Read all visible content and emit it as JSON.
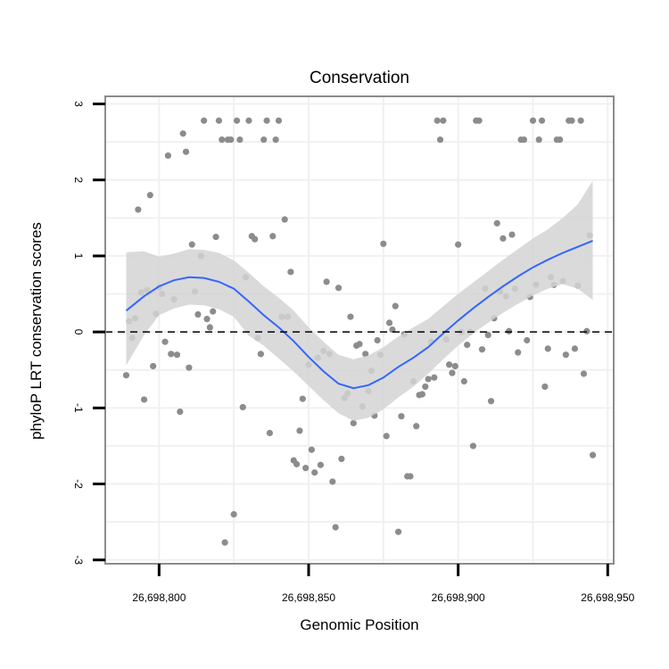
{
  "chart_data": {
    "type": "scatter",
    "title": "Conservation",
    "xlabel": "Genomic Position",
    "ylabel": "phyloP LRT conservation scores",
    "xlim": [
      26698782,
      26698952
    ],
    "ylim": [
      -3.05,
      3.1
    ],
    "xticks": [
      26698800,
      26698850,
      26698900,
      26698950
    ],
    "xtick_labels": [
      "26,698,800",
      "26,698,850",
      "26,698,900",
      "26,698,950"
    ],
    "yticks": [
      -3,
      -2,
      -1,
      0,
      1,
      2,
      3
    ],
    "ytick_labels": [
      "-3",
      "-2",
      "-1",
      "0",
      "1",
      "2",
      "3"
    ],
    "grid": true,
    "reference_line": {
      "y": 0,
      "style": "dashed"
    },
    "colors": {
      "points": "#8c8c8c",
      "smooth_line": "#3366ff",
      "ribbon": "#d3d3d3",
      "grid": "#f0f0f0",
      "frame": "#8c8c8c"
    },
    "series": [
      {
        "type": "scatter",
        "points": [
          [
            26698789,
            -0.57
          ],
          [
            26698790,
            0.14
          ],
          [
            26698791,
            -0.08
          ],
          [
            26698792,
            0.18
          ],
          [
            26698793,
            1.61
          ],
          [
            26698794,
            0.52
          ],
          [
            26698795,
            -0.89
          ],
          [
            26698796,
            0.55
          ],
          [
            26698797,
            1.8
          ],
          [
            26698798,
            -0.45
          ],
          [
            26698799,
            0.24
          ],
          [
            26698800,
            0.59
          ],
          [
            26698801,
            0.5
          ],
          [
            26698802,
            -0.13
          ],
          [
            26698803,
            2.32
          ],
          [
            26698804,
            -0.29
          ],
          [
            26698805,
            0.43
          ],
          [
            26698806,
            -0.3
          ],
          [
            26698807,
            -1.05
          ],
          [
            26698808,
            2.61
          ],
          [
            26698809,
            2.37
          ],
          [
            26698810,
            -0.47
          ],
          [
            26698811,
            1.15
          ],
          [
            26698812,
            0.53
          ],
          [
            26698813,
            0.23
          ],
          [
            26698814,
            1.0
          ],
          [
            26698815,
            2.78
          ],
          [
            26698816,
            0.17
          ],
          [
            26698817,
            0.06
          ],
          [
            26698818,
            0.27
          ],
          [
            26698819,
            1.25
          ],
          [
            26698820,
            2.78
          ],
          [
            26698821,
            2.53
          ],
          [
            26698822,
            -2.77
          ],
          [
            26698823,
            2.53
          ],
          [
            26698824,
            2.53
          ],
          [
            26698825,
            -2.4
          ],
          [
            26698826,
            2.78
          ],
          [
            26698827,
            2.53
          ],
          [
            26698828,
            -0.99
          ],
          [
            26698829,
            0.72
          ],
          [
            26698830,
            2.78
          ],
          [
            26698831,
            1.26
          ],
          [
            26698832,
            1.22
          ],
          [
            26698833,
            -0.08
          ],
          [
            26698834,
            -0.29
          ],
          [
            26698835,
            2.53
          ],
          [
            26698836,
            2.78
          ],
          [
            26698837,
            -1.33
          ],
          [
            26698838,
            1.26
          ],
          [
            26698839,
            2.53
          ],
          [
            26698840,
            2.78
          ],
          [
            26698841,
            0.2
          ],
          [
            26698842,
            1.48
          ],
          [
            26698843,
            0.2
          ],
          [
            26698844,
            0.79
          ],
          [
            26698845,
            -1.69
          ],
          [
            26698846,
            -1.74
          ],
          [
            26698847,
            -1.3
          ],
          [
            26698848,
            -0.88
          ],
          [
            26698849,
            -1.79
          ],
          [
            26698850,
            -0.43
          ],
          [
            26698851,
            -1.55
          ],
          [
            26698852,
            -1.85
          ],
          [
            26698853,
            -0.34
          ],
          [
            26698854,
            -1.75
          ],
          [
            26698855,
            -0.25
          ],
          [
            26698856,
            0.66
          ],
          [
            26698857,
            -0.29
          ],
          [
            26698858,
            -1.97
          ],
          [
            26698859,
            -2.57
          ],
          [
            26698860,
            0.58
          ],
          [
            26698861,
            -1.67
          ],
          [
            26698862,
            -0.87
          ],
          [
            26698863,
            -0.81
          ],
          [
            26698864,
            0.2
          ],
          [
            26698865,
            -1.2
          ],
          [
            26698866,
            -0.18
          ],
          [
            26698867,
            -0.16
          ],
          [
            26698868,
            -0.98
          ],
          [
            26698869,
            -0.29
          ],
          [
            26698870,
            -0.78
          ],
          [
            26698871,
            -0.51
          ],
          [
            26698872,
            -1.1
          ],
          [
            26698873,
            -0.11
          ],
          [
            26698874,
            -0.3
          ],
          [
            26698875,
            1.16
          ],
          [
            26698876,
            -1.37
          ],
          [
            26698877,
            0.12
          ],
          [
            26698878,
            0.03
          ],
          [
            26698879,
            0.34
          ],
          [
            26698880,
            -2.63
          ],
          [
            26698881,
            -1.11
          ],
          [
            26698882,
            -0.03
          ],
          [
            26698883,
            -1.9
          ],
          [
            26698884,
            -1.9
          ],
          [
            26698885,
            -0.65
          ],
          [
            26698886,
            -1.24
          ],
          [
            26698887,
            -0.83
          ],
          [
            26698888,
            -0.82
          ],
          [
            26698889,
            -0.72
          ],
          [
            26698890,
            -0.62
          ],
          [
            26698891,
            -0.13
          ],
          [
            26698892,
            -0.6
          ],
          [
            26698893,
            2.78
          ],
          [
            26698894,
            2.53
          ],
          [
            26698895,
            2.78
          ],
          [
            26698896,
            -0.1
          ],
          [
            26698897,
            -0.43
          ],
          [
            26698898,
            -0.54
          ],
          [
            26698899,
            -0.45
          ],
          [
            26698900,
            1.15
          ],
          [
            26698901,
            0.0
          ],
          [
            26698902,
            -0.65
          ],
          [
            26698903,
            -0.17
          ],
          [
            26698904,
            0.0
          ],
          [
            26698905,
            -1.5
          ],
          [
            26698906,
            2.78
          ],
          [
            26698907,
            2.78
          ],
          [
            26698908,
            -0.23
          ],
          [
            26698909,
            0.57
          ],
          [
            26698910,
            -0.04
          ],
          [
            26698911,
            -0.91
          ],
          [
            26698912,
            0.18
          ],
          [
            26698913,
            1.43
          ],
          [
            26698914,
            0.53
          ],
          [
            26698915,
            1.23
          ],
          [
            26698916,
            0.47
          ],
          [
            26698917,
            0.01
          ],
          [
            26698918,
            1.28
          ],
          [
            26698919,
            0.57
          ],
          [
            26698920,
            -0.27
          ],
          [
            26698921,
            2.53
          ],
          [
            26698922,
            2.53
          ],
          [
            26698923,
            -0.11
          ],
          [
            26698924,
            0.46
          ],
          [
            26698925,
            2.78
          ],
          [
            26698926,
            0.62
          ],
          [
            26698927,
            2.53
          ],
          [
            26698928,
            2.78
          ],
          [
            26698929,
            -0.72
          ],
          [
            26698930,
            -0.22
          ],
          [
            26698931,
            0.72
          ],
          [
            26698932,
            0.62
          ],
          [
            26698933,
            2.53
          ],
          [
            26698934,
            2.53
          ],
          [
            26698935,
            0.67
          ],
          [
            26698936,
            -0.3
          ],
          [
            26698937,
            2.78
          ],
          [
            26698938,
            2.78
          ],
          [
            26698939,
            -0.22
          ],
          [
            26698940,
            0.61
          ],
          [
            26698941,
            2.78
          ],
          [
            26698942,
            -0.55
          ],
          [
            26698943,
            0.01
          ],
          [
            26698944,
            1.27
          ],
          [
            26698945,
            -1.62
          ]
        ]
      },
      {
        "type": "line",
        "smooth": true,
        "x": [
          26698789,
          26698795,
          26698800,
          26698805,
          26698810,
          26698815,
          26698820,
          26698825,
          26698830,
          26698835,
          26698840,
          26698845,
          26698850,
          26698855,
          26698860,
          26698865,
          26698870,
          26698875,
          26698880,
          26698885,
          26698890,
          26698895,
          26698900,
          26698905,
          26698910,
          26698915,
          26698920,
          26698925,
          26698930,
          26698935,
          26698940,
          26698945
        ],
        "y": [
          0.28,
          0.47,
          0.6,
          0.68,
          0.72,
          0.71,
          0.66,
          0.57,
          0.4,
          0.22,
          0.06,
          -0.12,
          -0.33,
          -0.52,
          -0.68,
          -0.74,
          -0.7,
          -0.6,
          -0.46,
          -0.34,
          -0.2,
          -0.02,
          0.15,
          0.31,
          0.46,
          0.6,
          0.73,
          0.85,
          0.95,
          1.04,
          1.12,
          1.2
        ],
        "ci_lower": [
          -0.44,
          -0.04,
          0.22,
          0.31,
          0.36,
          0.35,
          0.3,
          0.2,
          -0.05,
          -0.18,
          -0.35,
          -0.52,
          -0.71,
          -0.9,
          -1.07,
          -1.17,
          -1.13,
          -1.02,
          -0.86,
          -0.72,
          -0.55,
          -0.36,
          -0.18,
          -0.02,
          0.12,
          0.25,
          0.37,
          0.48,
          0.57,
          0.63,
          0.57,
          0.42
        ],
        "ci_upper": [
          1.05,
          1.06,
          0.99,
          1.03,
          1.09,
          1.08,
          1.04,
          0.94,
          0.78,
          0.6,
          0.45,
          0.28,
          0.06,
          -0.13,
          -0.3,
          -0.36,
          -0.31,
          -0.2,
          -0.06,
          0.06,
          0.17,
          0.34,
          0.5,
          0.65,
          0.8,
          0.95,
          1.09,
          1.23,
          1.35,
          1.5,
          1.68,
          1.99
        ]
      }
    ]
  }
}
